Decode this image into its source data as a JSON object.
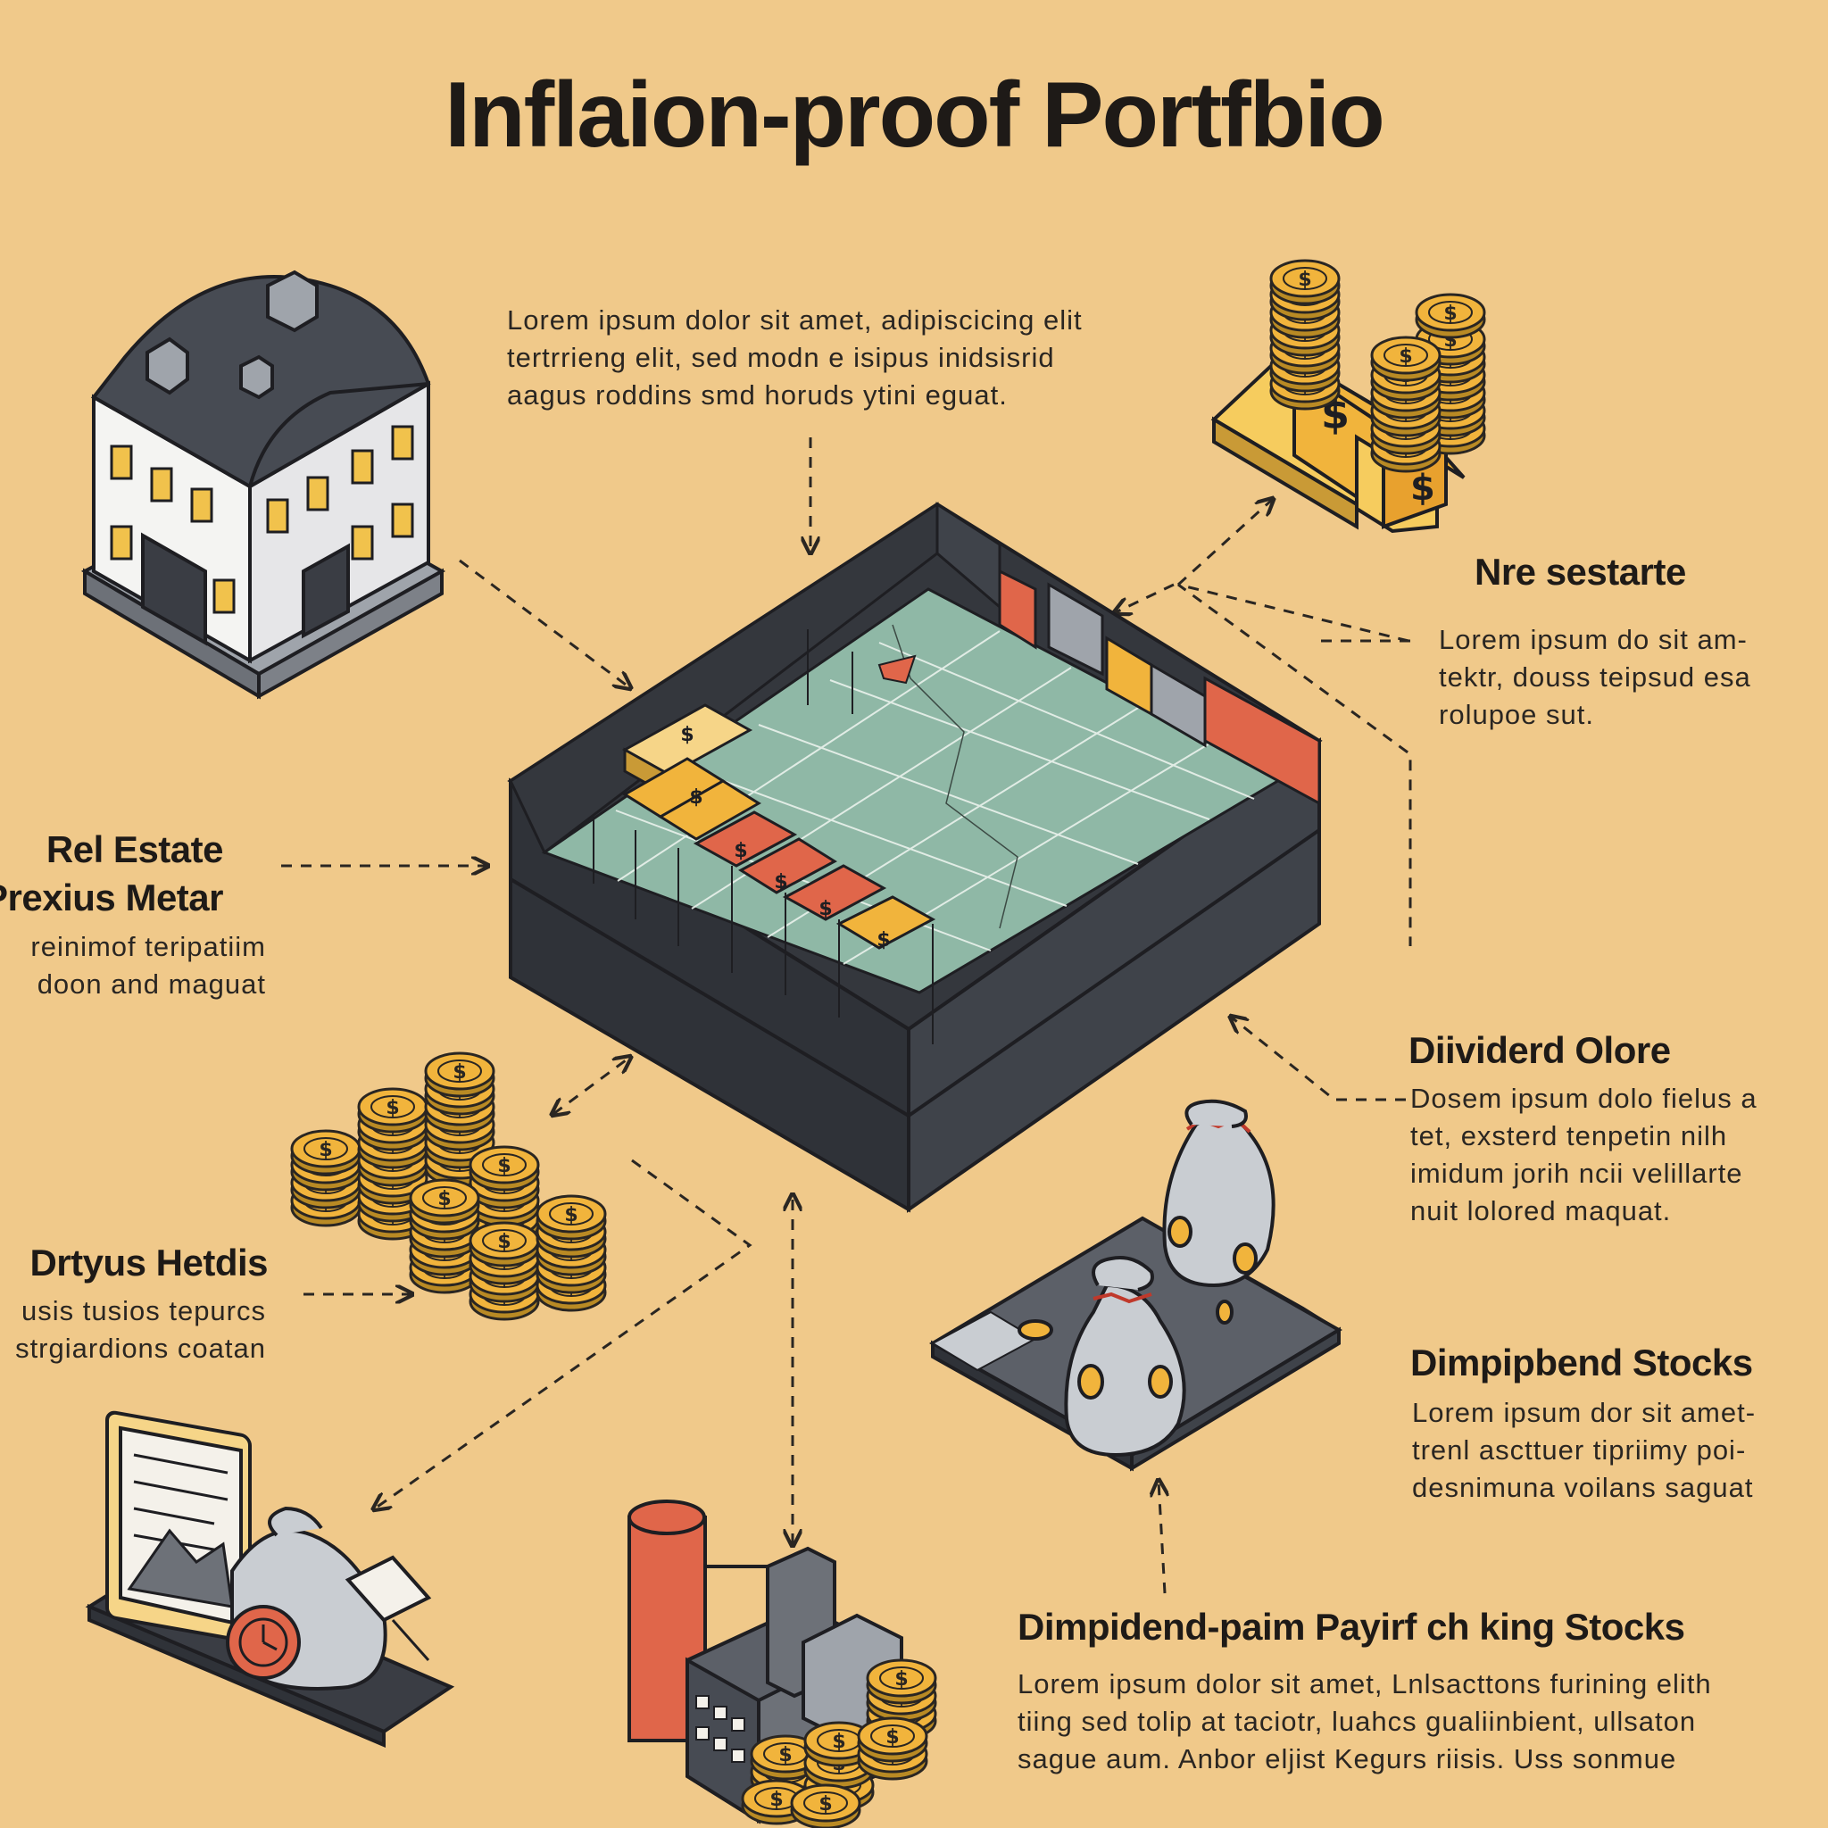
{
  "title": "Inflaion-proof Portfbio",
  "intro": {
    "lines": [
      "Lorem ipsum dolor sit amet, adipiscicing elit",
      "tertrrieng elit, sed modn e isipus inidsisrid",
      "aagus roddins smd horuds ytini eguat."
    ]
  },
  "sections": {
    "real_estate": {
      "heading": [
        "Rel Estate",
        "Prexius Metar"
      ],
      "lines": [
        "reinimof teripatiim",
        "doon and maguat"
      ]
    },
    "dividend_heads": {
      "heading": [
        "Drtyus Hetdis"
      ],
      "lines": [
        "usis tusios tepurcs",
        "strgiardions coatan"
      ]
    },
    "nre_sestarte": {
      "heading": [
        "Nre sestarte"
      ],
      "lines": [
        "Lorem ipsum do sit am-",
        "tektr, douss teipsud esa",
        "rolupoe sut."
      ]
    },
    "dividerd_olore": {
      "heading": [
        "Diividerd Olore"
      ],
      "lines": [
        "Dosem ipsum dolo fielus a",
        "tet, exsterd tenpetin nilh",
        "imidum jorih ncii velillarte",
        "nuit lolored maquat."
      ]
    },
    "dimpipbend_stocks": {
      "heading": [
        "Dimpipbend Stocks"
      ],
      "lines": [
        "Lorem ipsum dor sit amet-",
        "trenl ascttuer tipriimy poi-",
        "desnimuna voilans saguat"
      ]
    },
    "dimpidend_paying": {
      "heading": [
        "Dimpidend-paim Payirf ch king Stocks"
      ],
      "lines": [
        "Lorem ipsum dolor sit amet, Lnlsacttons furining elith",
        "tiing sed tolip at taciotr, luahcs gualiinbient, ullsaton",
        "sague aum. Anbor eljist Kegurs riisis. Uss sonmue"
      ]
    }
  },
  "icons": {
    "building": "building-icon",
    "gold": "gold-bars-icon",
    "coins": "coin-stacks-icon",
    "bags": "money-bags-icon",
    "tablet": "tablet-chart-icon",
    "factory": "factory-icon",
    "board": "portfolio-board-icon",
    "coin_symbol": "$"
  },
  "colors": {
    "background": "#F0C98A",
    "dark": "#3A3D44",
    "teal": "#8FB8A6",
    "gold": "#F1B43C",
    "red": "#E0664A",
    "grey": "#9FA4AB"
  }
}
